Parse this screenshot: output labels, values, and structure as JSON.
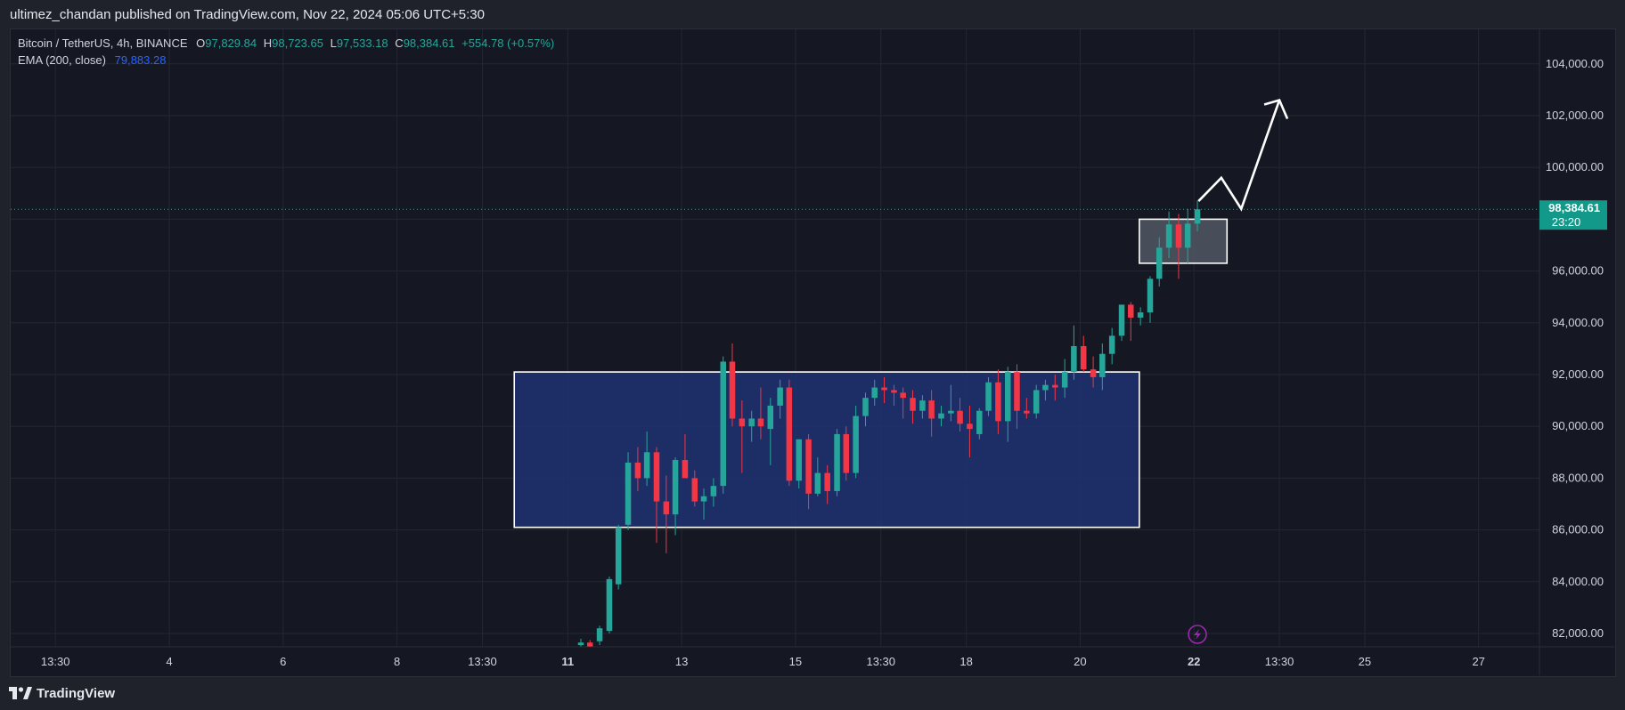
{
  "header": {
    "publisher_line": "ultimez_chandan published on TradingView.com, Nov 22, 2024 05:06 UTC+5:30"
  },
  "legend": {
    "symbol": "Bitcoin / TetherUS, 4h, BINANCE",
    "o_label": "O",
    "o_value": "97,829.84",
    "h_label": "H",
    "h_value": "98,723.65",
    "l_label": "L",
    "l_value": "97,533.18",
    "c_label": "C",
    "c_value": "98,384.61",
    "change": "+554.78 (+0.57%)",
    "ema_label": "EMA (200, close)",
    "ema_value": "79,883.28"
  },
  "footer": {
    "brand": "TradingView"
  },
  "colors": {
    "up": "#26a69a",
    "down": "#f23645",
    "background": "#151822",
    "range_box_fill": "#1e3272",
    "range_box_stroke": "#ffffff",
    "price_label_bg": "#12998a",
    "ema_line": "#2962ff",
    "alert_icon": "#9c27b0"
  },
  "icons": {
    "logo": "tradingview-logo-icon",
    "alert": "lightning-alert-icon",
    "arrow": "forecast-arrow-icon"
  },
  "chart_data": {
    "type": "candlestick",
    "symbol": "Bitcoin / TetherUS",
    "interval": "4h",
    "exchange": "BINANCE",
    "ylim": [
      81600,
      105600
    ],
    "y_ticks": [
      82000,
      84000,
      86000,
      88000,
      90000,
      92000,
      94000,
      96000,
      98000,
      100000,
      102000,
      104000
    ],
    "y_tick_labels": [
      "82,000.00",
      "84,000.00",
      "86,000.00",
      "88,000.00",
      "90,000.00",
      "92,000.00",
      "94,000.00",
      "96,000.00",
      "98,000.00",
      "100,000.00",
      "102,000.00",
      "104,000.00"
    ],
    "x_tick_labels": [
      {
        "label": "13:30",
        "day": 1.94
      },
      {
        "label": "4",
        "day": 3.94
      },
      {
        "label": "6",
        "day": 5.94
      },
      {
        "label": "8",
        "day": 7.94
      },
      {
        "label": "13:30",
        "day": 9.44
      },
      {
        "label": "11",
        "day": 10.94
      },
      {
        "label": "13",
        "day": 12.94
      },
      {
        "label": "15",
        "day": 14.94
      },
      {
        "label": "13:30",
        "day": 16.44
      },
      {
        "label": "18",
        "day": 17.94
      },
      {
        "label": "20",
        "day": 19.94
      },
      {
        "label": "22",
        "day": 21.94
      },
      {
        "label": "13:30",
        "day": 23.44
      },
      {
        "label": "25",
        "day": 24.94
      },
      {
        "label": "27",
        "day": 26.94
      }
    ],
    "x_tick_bold": [
      "11",
      "22"
    ],
    "x_axis_start_day": 0.93,
    "candles": [
      {
        "d": 11.17,
        "o": 81550,
        "h": 81800,
        "l": 81500,
        "c": 81650
      },
      {
        "d": 11.33,
        "o": 81650,
        "h": 81750,
        "l": 81450,
        "c": 81500
      },
      {
        "d": 11.5,
        "o": 81700,
        "h": 82300,
        "l": 81550,
        "c": 82200
      },
      {
        "d": 11.67,
        "o": 82100,
        "h": 84200,
        "l": 82000,
        "c": 84100
      },
      {
        "d": 11.83,
        "o": 83900,
        "h": 86200,
        "l": 83700,
        "c": 86100
      },
      {
        "d": 12.0,
        "o": 86200,
        "h": 89000,
        "l": 86000,
        "c": 88600
      },
      {
        "d": 12.17,
        "o": 88600,
        "h": 89200,
        "l": 87500,
        "c": 88000
      },
      {
        "d": 12.33,
        "o": 88000,
        "h": 89800,
        "l": 87700,
        "c": 89000
      },
      {
        "d": 12.5,
        "o": 89000,
        "h": 89200,
        "l": 85500,
        "c": 87100
      },
      {
        "d": 12.67,
        "o": 87100,
        "h": 88100,
        "l": 85100,
        "c": 86600
      },
      {
        "d": 12.83,
        "o": 86600,
        "h": 88800,
        "l": 85800,
        "c": 88700
      },
      {
        "d": 13.0,
        "o": 88700,
        "h": 89700,
        "l": 88000,
        "c": 88000
      },
      {
        "d": 13.17,
        "o": 88000,
        "h": 88300,
        "l": 86900,
        "c": 87100
      },
      {
        "d": 13.33,
        "o": 87100,
        "h": 87600,
        "l": 86400,
        "c": 87300
      },
      {
        "d": 13.5,
        "o": 87300,
        "h": 88000,
        "l": 86900,
        "c": 87700
      },
      {
        "d": 13.67,
        "o": 87700,
        "h": 92700,
        "l": 87400,
        "c": 92500
      },
      {
        "d": 13.83,
        "o": 92500,
        "h": 93200,
        "l": 90000,
        "c": 90300
      },
      {
        "d": 14.0,
        "o": 90300,
        "h": 91000,
        "l": 88200,
        "c": 90000
      },
      {
        "d": 14.17,
        "o": 90000,
        "h": 90600,
        "l": 89400,
        "c": 90300
      },
      {
        "d": 14.33,
        "o": 90300,
        "h": 91500,
        "l": 89500,
        "c": 90000
      },
      {
        "d": 14.5,
        "o": 89900,
        "h": 91100,
        "l": 88500,
        "c": 90800
      },
      {
        "d": 14.67,
        "o": 90800,
        "h": 91800,
        "l": 90300,
        "c": 91500
      },
      {
        "d": 14.83,
        "o": 91500,
        "h": 91800,
        "l": 87700,
        "c": 87900
      },
      {
        "d": 15.0,
        "o": 87900,
        "h": 89500,
        "l": 87600,
        "c": 89500
      },
      {
        "d": 15.17,
        "o": 89500,
        "h": 89700,
        "l": 86800,
        "c": 87400
      },
      {
        "d": 15.33,
        "o": 87400,
        "h": 88800,
        "l": 87300,
        "c": 88200
      },
      {
        "d": 15.5,
        "o": 88200,
        "h": 88500,
        "l": 87000,
        "c": 87500
      },
      {
        "d": 15.67,
        "o": 87500,
        "h": 89900,
        "l": 87300,
        "c": 89700
      },
      {
        "d": 15.83,
        "o": 89700,
        "h": 90000,
        "l": 87900,
        "c": 88200
      },
      {
        "d": 16.0,
        "o": 88200,
        "h": 90800,
        "l": 88000,
        "c": 90400
      },
      {
        "d": 16.17,
        "o": 90400,
        "h": 91300,
        "l": 90000,
        "c": 91100
      },
      {
        "d": 16.33,
        "o": 91100,
        "h": 91800,
        "l": 90800,
        "c": 91500
      },
      {
        "d": 16.5,
        "o": 91500,
        "h": 91900,
        "l": 90900,
        "c": 91400
      },
      {
        "d": 16.67,
        "o": 91400,
        "h": 91600,
        "l": 90800,
        "c": 91300
      },
      {
        "d": 16.83,
        "o": 91300,
        "h": 91500,
        "l": 90300,
        "c": 91100
      },
      {
        "d": 17.0,
        "o": 91100,
        "h": 91400,
        "l": 90100,
        "c": 90600
      },
      {
        "d": 17.17,
        "o": 90600,
        "h": 91200,
        "l": 90300,
        "c": 91000
      },
      {
        "d": 17.33,
        "o": 91000,
        "h": 91400,
        "l": 89600,
        "c": 90300
      },
      {
        "d": 17.5,
        "o": 90300,
        "h": 90800,
        "l": 90000,
        "c": 90500
      },
      {
        "d": 17.67,
        "o": 90500,
        "h": 91600,
        "l": 90200,
        "c": 90600
      },
      {
        "d": 17.83,
        "o": 90600,
        "h": 91100,
        "l": 89800,
        "c": 90100
      },
      {
        "d": 18.0,
        "o": 90100,
        "h": 90800,
        "l": 88800,
        "c": 89900
      },
      {
        "d": 18.17,
        "o": 89700,
        "h": 90700,
        "l": 89500,
        "c": 90600
      },
      {
        "d": 18.33,
        "o": 90600,
        "h": 91900,
        "l": 90400,
        "c": 91700
      },
      {
        "d": 18.5,
        "o": 91700,
        "h": 92200,
        "l": 89700,
        "c": 90200
      },
      {
        "d": 18.67,
        "o": 90200,
        "h": 92300,
        "l": 89400,
        "c": 92100
      },
      {
        "d": 18.83,
        "o": 92100,
        "h": 92400,
        "l": 89900,
        "c": 90600
      },
      {
        "d": 19.0,
        "o": 90600,
        "h": 91100,
        "l": 90300,
        "c": 90500
      },
      {
        "d": 19.17,
        "o": 90500,
        "h": 91600,
        "l": 90300,
        "c": 91400
      },
      {
        "d": 19.33,
        "o": 91400,
        "h": 91800,
        "l": 91000,
        "c": 91600
      },
      {
        "d": 19.5,
        "o": 91600,
        "h": 92000,
        "l": 91000,
        "c": 91500
      },
      {
        "d": 19.67,
        "o": 91500,
        "h": 92600,
        "l": 91100,
        "c": 92100
      },
      {
        "d": 19.83,
        "o": 92100,
        "h": 93900,
        "l": 91800,
        "c": 93100
      },
      {
        "d": 20.0,
        "o": 93100,
        "h": 93500,
        "l": 92100,
        "c": 92200
      },
      {
        "d": 20.17,
        "o": 92200,
        "h": 92700,
        "l": 91500,
        "c": 91900
      },
      {
        "d": 20.33,
        "o": 91900,
        "h": 93200,
        "l": 91400,
        "c": 92800
      },
      {
        "d": 20.5,
        "o": 92800,
        "h": 93800,
        "l": 92400,
        "c": 93500
      },
      {
        "d": 20.67,
        "o": 93500,
        "h": 94700,
        "l": 93300,
        "c": 94700
      },
      {
        "d": 20.83,
        "o": 94700,
        "h": 94800,
        "l": 93300,
        "c": 94200
      },
      {
        "d": 21.0,
        "o": 94200,
        "h": 94600,
        "l": 93900,
        "c": 94400
      },
      {
        "d": 21.17,
        "o": 94400,
        "h": 95800,
        "l": 94000,
        "c": 95700
      },
      {
        "d": 21.33,
        "o": 95700,
        "h": 97300,
        "l": 95400,
        "c": 96900
      },
      {
        "d": 21.5,
        "o": 96900,
        "h": 98300,
        "l": 96500,
        "c": 97800
      },
      {
        "d": 21.67,
        "o": 97800,
        "h": 98200,
        "l": 95700,
        "c": 96900
      },
      {
        "d": 21.83,
        "o": 96900,
        "h": 98400,
        "l": 96300,
        "c": 97829.84
      },
      {
        "d": 22.0,
        "o": 97829.84,
        "h": 98723.65,
        "l": 97533.18,
        "c": 98384.61
      }
    ],
    "last_price": 98384.61,
    "last_price_label": "98,384.61",
    "bar_countdown": "23:20",
    "ema200": 79883.28,
    "annotations": [
      {
        "type": "rectangle",
        "day_from": 10.0,
        "day_to": 20.98,
        "price_from": 86100,
        "price_to": 92100,
        "fill": "#1e3272"
      },
      {
        "type": "rectangle",
        "day_from": 20.98,
        "day_to": 22.52,
        "price_from": 96300,
        "price_to": 98000,
        "fill": "#5a5f6d"
      },
      {
        "type": "projection-arrow",
        "points": [
          [
            22.02,
            98700
          ],
          [
            22.42,
            99600
          ],
          [
            22.77,
            98400
          ],
          [
            23.44,
            102600
          ]
        ]
      }
    ]
  }
}
